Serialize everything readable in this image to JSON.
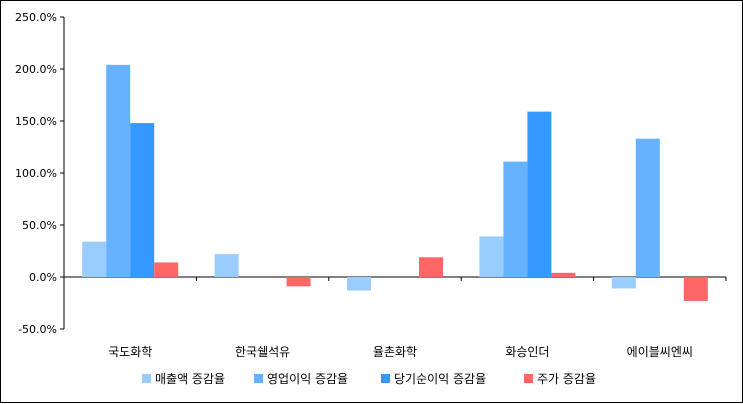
{
  "chart_data": {
    "type": "bar",
    "categories": [
      "국도화학",
      "한국쉘석유",
      "율촌화학",
      "화승인더",
      "에이블씨엔씨"
    ],
    "series": [
      {
        "name": "매출액 증감율",
        "color": "#99CCFF",
        "values": [
          34,
          22,
          -13,
          39,
          -11
        ]
      },
      {
        "name": "영업이익 증감율",
        "color": "#66B2FF",
        "values": [
          204,
          0,
          0,
          111,
          133
        ]
      },
      {
        "name": "당기순이익 증감율",
        "color": "#3399FF",
        "values": [
          148,
          0,
          0,
          159,
          0
        ]
      },
      {
        "name": "주가 증감율",
        "color": "#FF6666",
        "values": [
          14,
          -9,
          19,
          4,
          -23
        ]
      }
    ],
    "ylim": [
      -50,
      250
    ],
    "yticks": [
      -50,
      0,
      50,
      100,
      150,
      200,
      250
    ],
    "ytick_labels": [
      "-50.0%",
      "0.0%",
      "50.0%",
      "100.0%",
      "150.0%",
      "200.0%",
      "250.0%"
    ],
    "grid": false,
    "legend_position": "bottom",
    "title": "",
    "xlabel": "",
    "ylabel": ""
  }
}
